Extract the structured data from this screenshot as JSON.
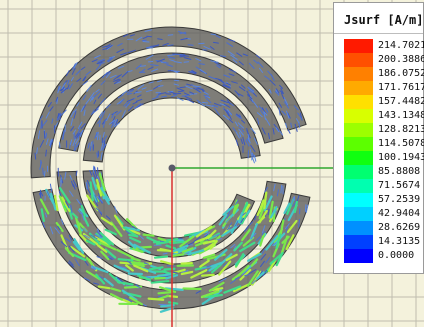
{
  "legend": {
    "title": "Jsurf [A/m]",
    "values": [
      "214.7021",
      "200.3886",
      "186.0752",
      "171.7617",
      "157.4482",
      "143.1348",
      "128.8213",
      "114.5078",
      "100.1943",
      "85.8808",
      "71.5674",
      "57.2539",
      "42.9404",
      "28.6269",
      "14.3135",
      "0.0000"
    ],
    "colors": [
      "#ff1a00",
      "#ff5000",
      "#ff8000",
      "#ffaa00",
      "#ffe000",
      "#d8ff00",
      "#9cff00",
      "#5cff00",
      "#10ff10",
      "#00ff70",
      "#00ffb0",
      "#00ffff",
      "#00d0ff",
      "#0090ff",
      "#0040ff",
      "#0000ff"
    ]
  },
  "view": {
    "background": "#f4f2dc",
    "grid_color": "#bfbcae",
    "axis_x_color": "#2fa82f",
    "axis_y_color": "#d83030",
    "trace_color": "#5c5c5c",
    "arrow_colors": [
      "#4a6ed0",
      "#3c58c0",
      "#5a86e0",
      "#46c8c8",
      "#3fdc8a",
      "#7ae84a",
      "#b6f040"
    ]
  }
}
